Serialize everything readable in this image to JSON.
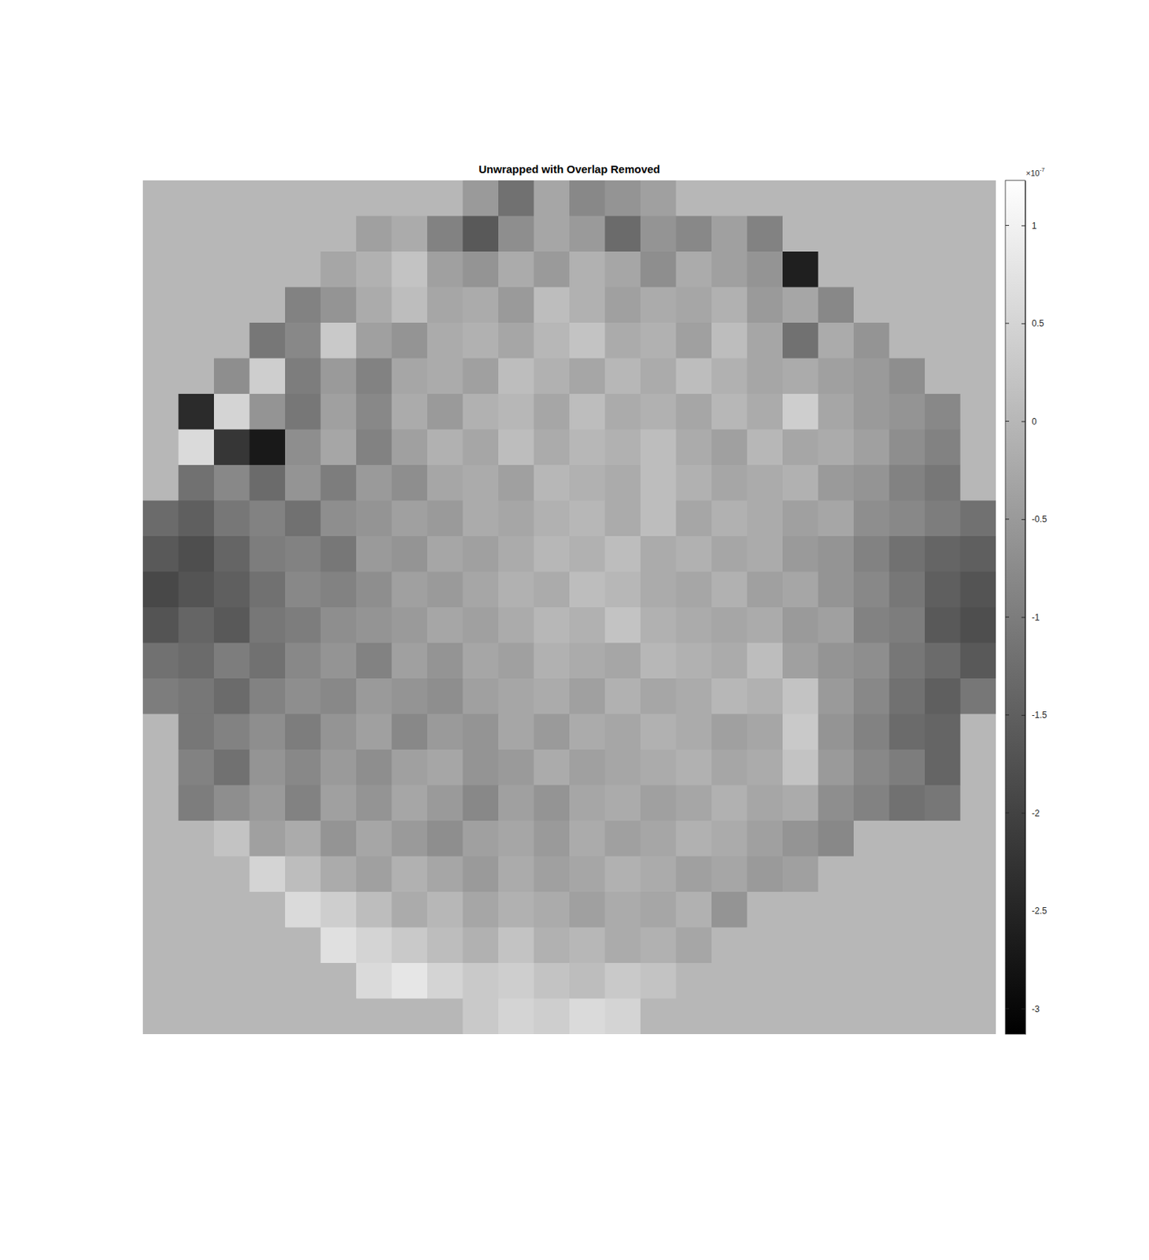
{
  "chart_data": {
    "type": "heatmap",
    "title": "Unwrapped with Overlap Removed",
    "cells": [
      [
        0,
        0,
        0,
        0,
        0,
        0,
        0,
        0,
        0,
        -0.5,
        -1.2,
        -0.3,
        -0.8,
        -0.6,
        -0.4,
        0,
        0,
        0,
        0,
        0,
        0,
        0,
        0,
        0
      ],
      [
        0,
        0,
        0,
        0,
        0,
        0,
        -0.4,
        -0.2,
        -0.9,
        -1.6,
        -0.7,
        -0.3,
        -0.5,
        -1.3,
        -0.6,
        -0.8,
        -0.4,
        -0.9,
        0,
        0,
        0,
        0,
        0,
        0
      ],
      [
        0,
        0,
        0,
        0,
        0,
        -0.3,
        -0.1,
        0.2,
        -0.4,
        -0.6,
        -0.2,
        -0.5,
        -0.1,
        -0.3,
        -0.7,
        -0.2,
        -0.4,
        -0.6,
        -2.6,
        0,
        0,
        0,
        0,
        0
      ],
      [
        0,
        0,
        0,
        0,
        -0.9,
        -0.6,
        -0.2,
        0.1,
        -0.3,
        -0.2,
        -0.5,
        0.1,
        -0.1,
        -0.4,
        -0.2,
        -0.3,
        -0.1,
        -0.5,
        -0.3,
        -0.8,
        0,
        0,
        0,
        0
      ],
      [
        0,
        0,
        0,
        -1.1,
        -0.8,
        0.3,
        -0.4,
        -0.6,
        -0.2,
        -0.1,
        -0.3,
        0.0,
        0.2,
        -0.2,
        -0.1,
        -0.4,
        0.1,
        -0.3,
        -1.2,
        -0.2,
        -0.6,
        0,
        0,
        0
      ],
      [
        0,
        0,
        -0.7,
        0.4,
        -1.0,
        -0.5,
        -0.9,
        -0.3,
        -0.2,
        -0.4,
        0.1,
        -0.1,
        -0.3,
        0.0,
        -0.2,
        0.1,
        -0.1,
        -0.3,
        -0.2,
        -0.4,
        -0.5,
        -0.7,
        0,
        0
      ],
      [
        0,
        -2.4,
        0.5,
        -0.6,
        -1.1,
        -0.4,
        -0.8,
        -0.2,
        -0.5,
        -0.1,
        0.0,
        -0.3,
        0.1,
        -0.2,
        -0.1,
        -0.3,
        0.0,
        -0.2,
        0.4,
        -0.3,
        -0.5,
        -0.6,
        -0.8,
        0
      ],
      [
        0,
        0.6,
        -2.2,
        -2.7,
        -0.7,
        -0.3,
        -0.9,
        -0.4,
        -0.1,
        -0.3,
        0.1,
        -0.2,
        0.0,
        -0.1,
        0.1,
        -0.2,
        -0.4,
        0.0,
        -0.3,
        -0.2,
        -0.4,
        -0.7,
        -0.9,
        0
      ],
      [
        0,
        -1.2,
        -0.8,
        -1.3,
        -0.6,
        -1.0,
        -0.5,
        -0.7,
        -0.3,
        -0.2,
        -0.4,
        0.0,
        -0.1,
        -0.2,
        0.1,
        -0.1,
        -0.3,
        -0.2,
        -0.1,
        -0.5,
        -0.6,
        -0.9,
        -1.1,
        0
      ],
      [
        -1.3,
        -1.5,
        -1.1,
        -0.9,
        -1.2,
        -0.7,
        -0.6,
        -0.4,
        -0.5,
        -0.2,
        -0.3,
        -0.1,
        0.0,
        -0.2,
        0.1,
        -0.3,
        -0.1,
        -0.2,
        -0.4,
        -0.3,
        -0.7,
        -0.8,
        -1.0,
        -1.2
      ],
      [
        -1.6,
        -1.8,
        -1.4,
        -1.0,
        -0.9,
        -1.1,
        -0.5,
        -0.6,
        -0.3,
        -0.4,
        -0.2,
        0.0,
        -0.1,
        0.1,
        -0.2,
        -0.1,
        -0.3,
        -0.2,
        -0.5,
        -0.6,
        -0.9,
        -1.2,
        -1.4,
        -1.5
      ],
      [
        -1.9,
        -1.7,
        -1.5,
        -1.2,
        -0.8,
        -0.9,
        -0.7,
        -0.4,
        -0.5,
        -0.3,
        -0.1,
        -0.2,
        0.1,
        0.0,
        -0.2,
        -0.3,
        -0.1,
        -0.4,
        -0.3,
        -0.6,
        -0.8,
        -1.1,
        -1.5,
        -1.7
      ],
      [
        -1.7,
        -1.4,
        -1.6,
        -1.1,
        -1.0,
        -0.7,
        -0.6,
        -0.5,
        -0.3,
        -0.4,
        -0.2,
        0.0,
        -0.1,
        0.2,
        -0.1,
        -0.2,
        -0.3,
        -0.2,
        -0.5,
        -0.4,
        -0.9,
        -1.0,
        -1.6,
        -1.8
      ],
      [
        -1.2,
        -1.3,
        -1.0,
        -1.2,
        -0.8,
        -0.6,
        -0.9,
        -0.4,
        -0.6,
        -0.3,
        -0.4,
        -0.1,
        -0.2,
        -0.3,
        0.0,
        -0.1,
        -0.2,
        0.1,
        -0.4,
        -0.6,
        -0.7,
        -1.1,
        -1.3,
        -1.6
      ],
      [
        -1.0,
        -1.1,
        -1.3,
        -0.9,
        -0.7,
        -0.8,
        -0.5,
        -0.6,
        -0.7,
        -0.4,
        -0.3,
        -0.2,
        -0.4,
        -0.1,
        -0.3,
        -0.2,
        0.0,
        -0.1,
        0.2,
        -0.5,
        -0.8,
        -1.2,
        -1.5,
        -1.1
      ],
      [
        0,
        -1.1,
        -0.9,
        -0.7,
        -1.0,
        -0.6,
        -0.4,
        -0.8,
        -0.5,
        -0.6,
        -0.3,
        -0.5,
        -0.2,
        -0.3,
        -0.1,
        -0.2,
        -0.4,
        -0.3,
        0.3,
        -0.6,
        -0.9,
        -1.3,
        -1.4,
        0
      ],
      [
        0,
        -0.9,
        -1.2,
        -0.6,
        -0.8,
        -0.5,
        -0.7,
        -0.4,
        -0.3,
        -0.6,
        -0.5,
        -0.2,
        -0.4,
        -0.3,
        -0.2,
        -0.1,
        -0.3,
        -0.2,
        0.2,
        -0.5,
        -0.8,
        -1.0,
        -1.4,
        0
      ],
      [
        0,
        -1.0,
        -0.7,
        -0.5,
        -0.9,
        -0.4,
        -0.6,
        -0.3,
        -0.5,
        -0.8,
        -0.4,
        -0.6,
        -0.3,
        -0.2,
        -0.4,
        -0.3,
        -0.1,
        -0.3,
        -0.2,
        -0.7,
        -0.9,
        -1.2,
        -1.1,
        0
      ],
      [
        0,
        0,
        0.2,
        -0.4,
        -0.2,
        -0.6,
        -0.3,
        -0.5,
        -0.7,
        -0.4,
        -0.3,
        -0.5,
        -0.2,
        -0.4,
        -0.3,
        -0.1,
        -0.2,
        -0.4,
        -0.6,
        -0.8,
        0,
        0,
        0,
        0
      ],
      [
        0,
        0,
        0,
        0.5,
        0.1,
        -0.2,
        -0.4,
        -0.1,
        -0.3,
        -0.5,
        -0.2,
        -0.4,
        -0.3,
        -0.1,
        -0.2,
        -0.4,
        -0.3,
        -0.5,
        -0.4,
        0,
        0,
        0,
        0,
        0
      ],
      [
        0,
        0,
        0,
        0,
        0.6,
        0.4,
        0.1,
        -0.2,
        0.0,
        -0.3,
        -0.1,
        -0.2,
        -0.4,
        -0.2,
        -0.3,
        -0.1,
        -0.6,
        0,
        0,
        0,
        0,
        0,
        0,
        0
      ],
      [
        0,
        0,
        0,
        0,
        0,
        0.7,
        0.5,
        0.3,
        0.1,
        -0.1,
        0.2,
        -0.1,
        0.0,
        -0.2,
        -0.1,
        -0.3,
        0,
        0,
        0,
        0,
        0,
        0,
        0,
        0
      ],
      [
        0,
        0,
        0,
        0,
        0,
        0,
        0.6,
        0.8,
        0.5,
        0.3,
        0.4,
        0.2,
        0.1,
        0.3,
        0.2,
        0,
        0,
        0,
        0,
        0,
        0,
        0,
        0,
        0
      ],
      [
        0,
        0,
        0,
        0,
        0,
        0,
        0,
        0,
        0,
        0.3,
        0.5,
        0.4,
        0.6,
        0.5,
        0,
        0,
        0,
        0,
        0,
        0,
        0,
        0,
        0,
        0
      ]
    ],
    "colorbar_range": [
      -3.13,
      1.23
    ],
    "colorbar_ticks": [
      -3,
      -2.5,
      -2,
      -1.5,
      -1,
      -0.5,
      0,
      0.5,
      1
    ],
    "colorbar_multiplier": "×10",
    "colorbar_exponent": "-7",
    "tick_labels": false
  }
}
